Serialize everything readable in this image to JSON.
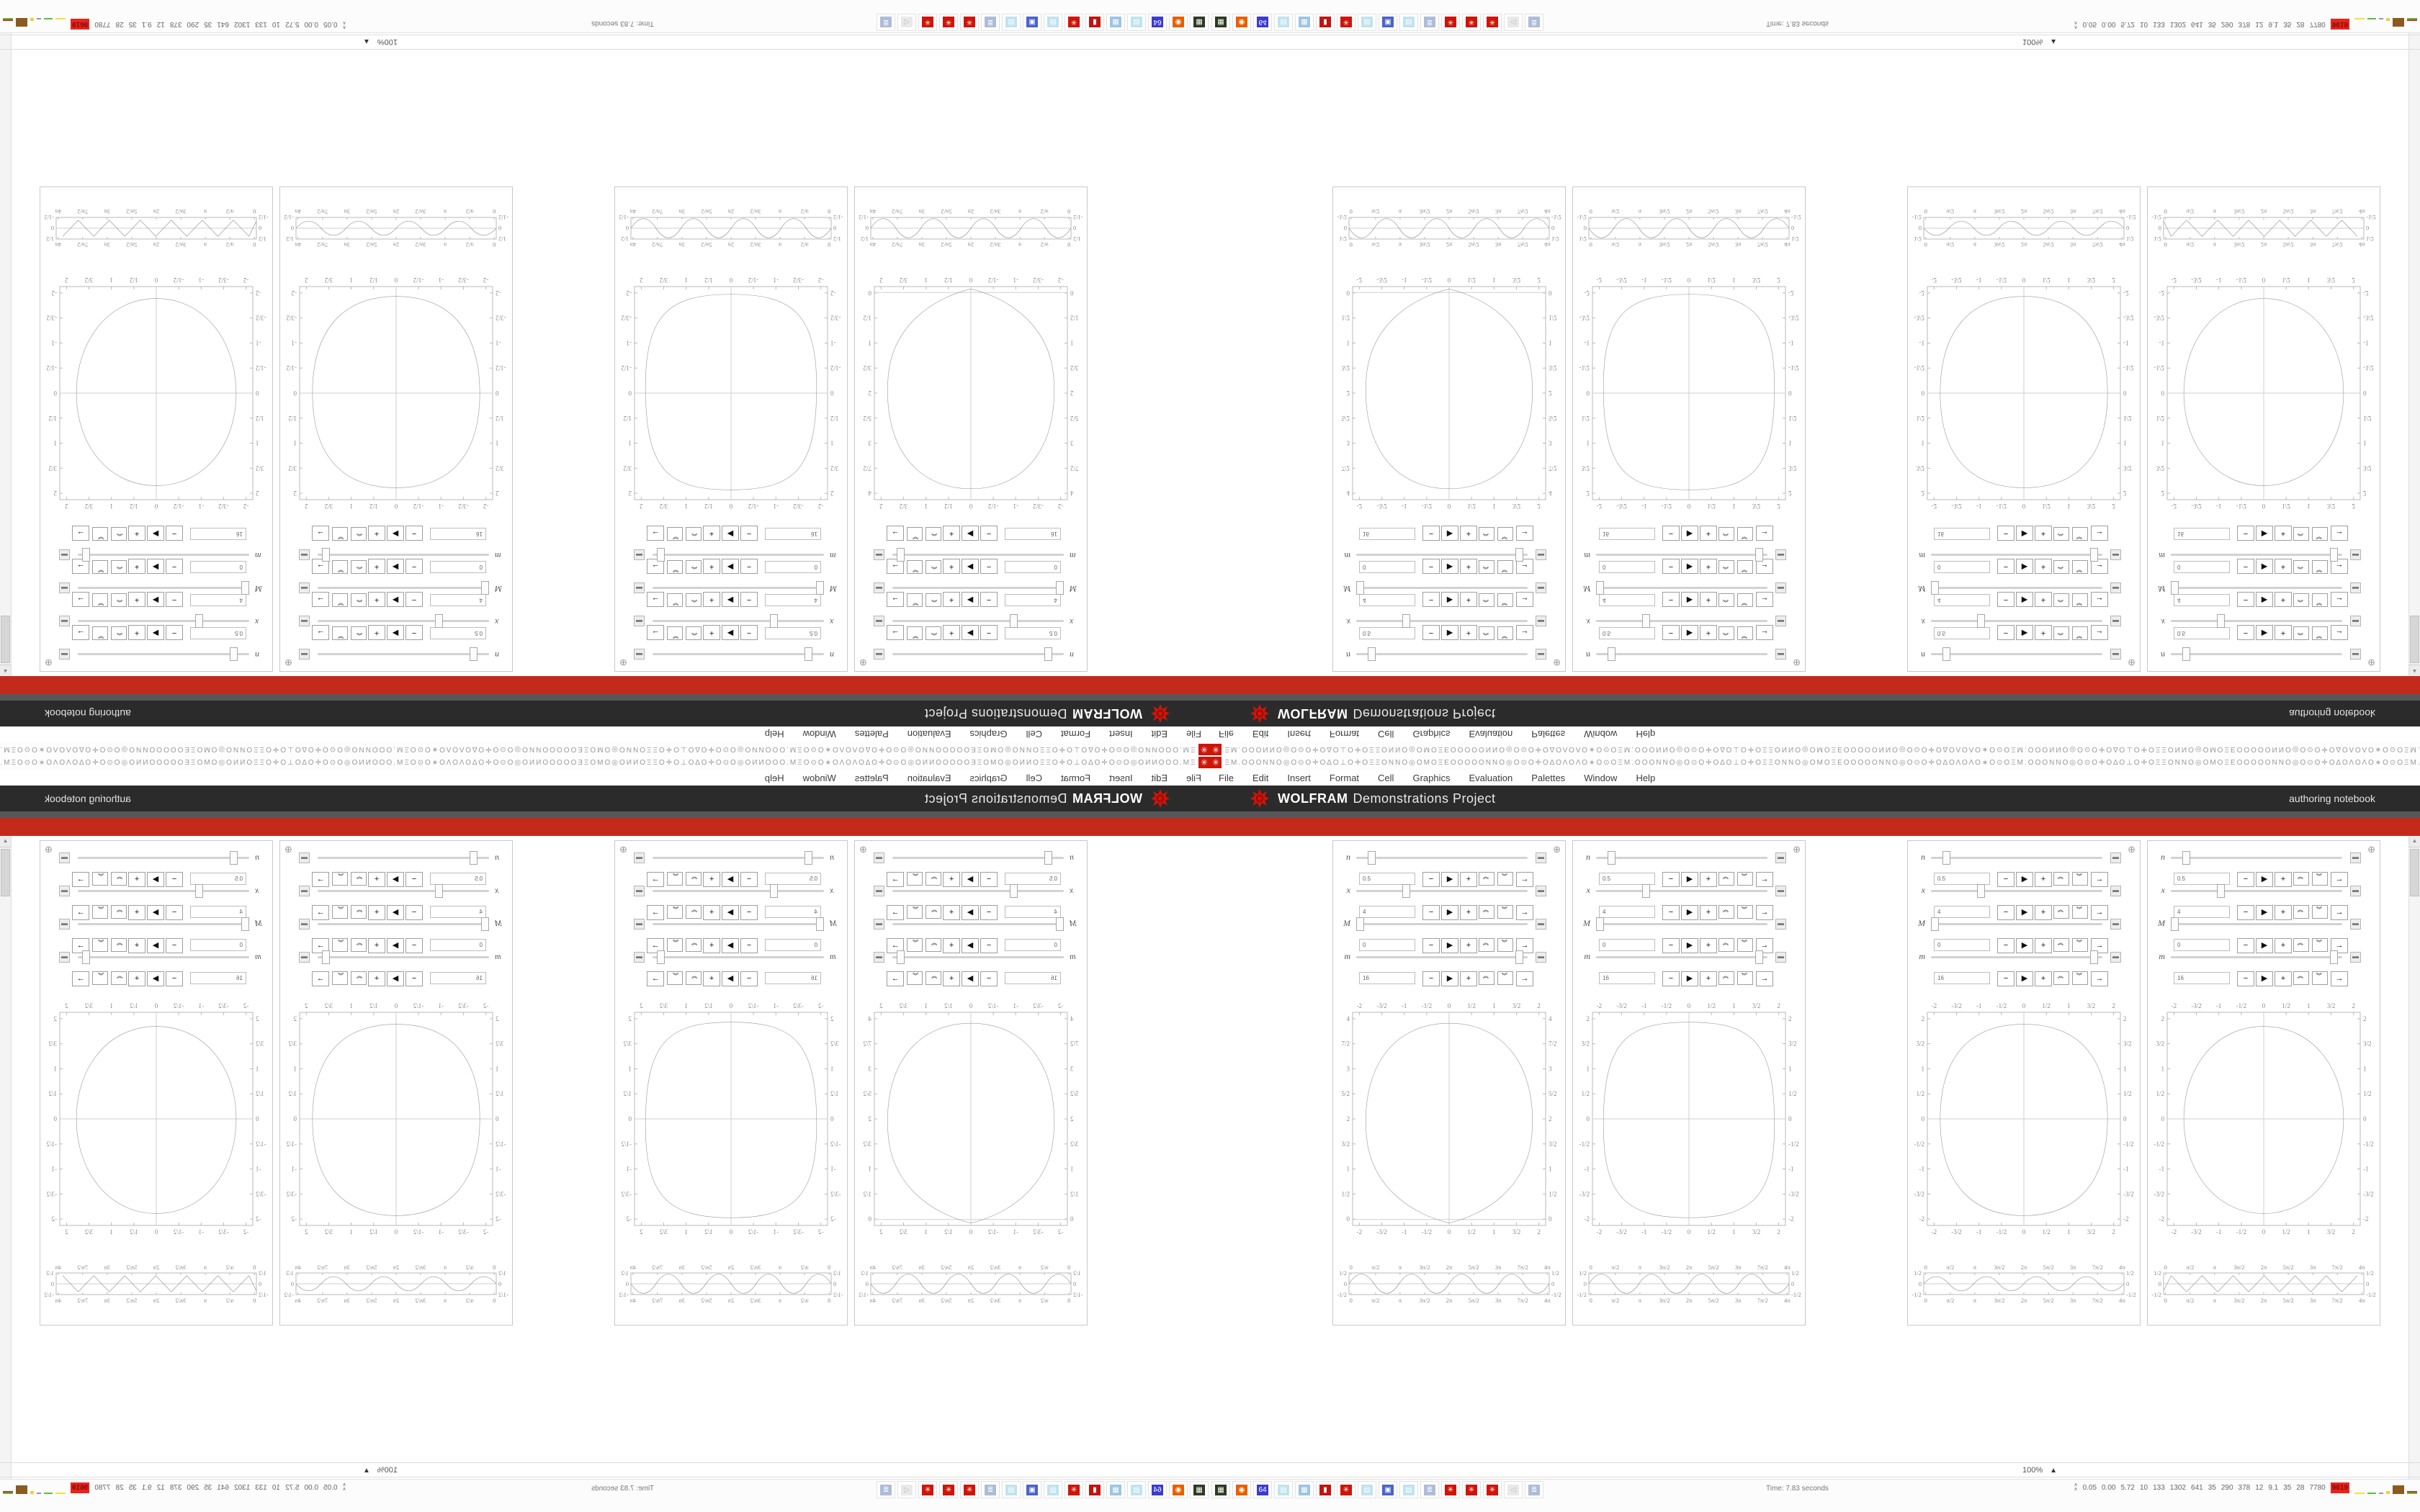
{
  "window": {
    "menus": [
      "File",
      "Edit",
      "Insert",
      "Format",
      "Cell",
      "Graphics",
      "Evaluation",
      "Palettes",
      "Window",
      "Help"
    ],
    "toolbar_glyph_pattern": "ΞΜ.ΟΟΟΝΝΟ◎Ο⊙Ο✛ΟΔΟ⊥Ο✛ΟΞΞΟΝΝΟ◎ΟΜΟΞΕΟΟΟΟΟΝΝΟ◎Ο⊙Ο✛ΟΔΟΛΟΛΟ∗Ο⊙Ο"
  },
  "banner": {
    "brand_bold": "WOLFRAM",
    "brand_light": "Demonstrations Project",
    "right_label": "authoring notebook",
    "bar_color": "#2b2b2c",
    "strip_color": "#57575a",
    "band_color": "#c42a1c",
    "spikey_color": "#cf1408"
  },
  "magnification": {
    "value": "100%",
    "arrow": "▲"
  },
  "taskbar": {
    "status_text": "Time: 7.83 seconds",
    "icons": [
      {
        "name": "archiver-icon",
        "color": "#2d3a23",
        "glyph": "▦"
      },
      {
        "name": "firefox-icon",
        "color": "#e66000",
        "glyph": "◉"
      },
      {
        "name": "floppy-64-icon",
        "color": "#3b3bd0",
        "glyph": "64"
      },
      {
        "name": "notepad-icon",
        "color": "#bfe3ee",
        "glyph": "▤"
      },
      {
        "name": "calculator-icon",
        "color": "#9cc4e4",
        "glyph": "▦"
      },
      {
        "name": "red-bag-icon",
        "color": "#c01410",
        "glyph": "▮"
      },
      {
        "name": "mathematica-icon",
        "color": "#cf1408",
        "glyph": "✳"
      },
      {
        "name": "notepad-icon",
        "color": "#bfe3ee",
        "glyph": "▤"
      },
      {
        "name": "image-viewer-icon",
        "color": "#4a62c8",
        "glyph": "▣"
      },
      {
        "name": "notepad-icon",
        "color": "#bfe3ee",
        "glyph": "▤"
      },
      {
        "name": "scroll-icon",
        "color": "#aebcd8",
        "glyph": "≣"
      },
      {
        "name": "mathematica-icon",
        "color": "#cf1408",
        "glyph": "✳"
      },
      {
        "name": "mathematica-icon",
        "color": "#cf1408",
        "glyph": "✳"
      },
      {
        "name": "mathematica-icon",
        "color": "#cf1408",
        "glyph": "✳"
      },
      {
        "name": "muted-speaker-icon",
        "color": "#e9e9e9",
        "glyph": "◁"
      },
      {
        "name": "scroll-icon",
        "color": "#aebcd8",
        "glyph": "≣"
      }
    ],
    "monitor": {
      "chevrons": "∧∧",
      "values": [
        "0.05",
        "0.00",
        "5.72",
        "10",
        "133",
        "1302",
        "641",
        "35",
        "290",
        "378",
        "12",
        "9.1",
        "35",
        "28",
        "7780"
      ],
      "badge": "9619"
    }
  },
  "chart_data": [
    {
      "type": "line",
      "title": "Manipulate panel 1",
      "controls": [
        {
          "label": "n",
          "value": "0.5",
          "slider_pos": 0.07
        },
        {
          "label": "x",
          "value": "4",
          "slider_pos": 0.28
        },
        {
          "label": "M",
          "value": "0",
          "slider_pos": 0.0
        },
        {
          "label": "m",
          "value": "16",
          "slider_pos": 0.97
        }
      ],
      "main_plot": {
        "curve": "dome",
        "xticks": [
          "-2",
          "-3/2",
          "-1",
          "-1/2",
          "0",
          "1/2",
          "1",
          "3/2",
          "2"
        ],
        "yticks": [
          "4",
          "7/2",
          "3",
          "5/2",
          "2",
          "3/2",
          "1",
          "1/2",
          "0"
        ],
        "xlim": [
          -2,
          2
        ],
        "ylim": [
          0,
          4
        ],
        "axis_x": "bottom"
      },
      "strip_plot": {
        "wave": "scallop",
        "xticks": [
          "0",
          "π/2",
          "π",
          "3π/2",
          "2π",
          "5π/2",
          "3π",
          "7π/2",
          "4π"
        ],
        "yticks": [
          "1/2",
          "0",
          "-1/2"
        ],
        "xlim_label": "0..4π",
        "ylim": [
          -0.5,
          0.5
        ]
      }
    },
    {
      "type": "line",
      "title": "Manipulate panel 2",
      "controls": [
        {
          "label": "n",
          "value": "0.5",
          "slider_pos": 0.07
        },
        {
          "label": "x",
          "value": "4",
          "slider_pos": 0.28
        },
        {
          "label": "M",
          "value": "0",
          "slider_pos": 0.0
        },
        {
          "label": "m",
          "value": "16",
          "slider_pos": 0.97
        }
      ],
      "main_plot": {
        "curve": "squircle",
        "xticks": [
          "-2",
          "-3/2",
          "-1",
          "-1/2",
          "0",
          "1/2",
          "1",
          "3/2",
          "2"
        ],
        "yticks": [
          "2",
          "3/2",
          "1",
          "1/2",
          "0",
          "-1/2",
          "-1",
          "-3/2",
          "-2"
        ],
        "xlim": [
          -2,
          2
        ],
        "ylim": [
          -2,
          2
        ],
        "axis_x": "center"
      },
      "strip_plot": {
        "wave": "scallop",
        "xticks": [
          "0",
          "π/2",
          "π",
          "3π/2",
          "2π",
          "5π/2",
          "3π",
          "7π/2",
          "4π"
        ],
        "yticks": [
          "1/2",
          "0",
          "-1/2"
        ],
        "xlim_label": "0..4π",
        "ylim": [
          -0.5,
          0.5
        ]
      }
    },
    {
      "type": "line",
      "title": "Manipulate panel 3",
      "controls": [
        {
          "label": "n",
          "value": "0.5",
          "slider_pos": 0.07
        },
        {
          "label": "x",
          "value": "4",
          "slider_pos": 0.28
        },
        {
          "label": "M",
          "value": "0",
          "slider_pos": 0.0
        },
        {
          "label": "m",
          "value": "16",
          "slider_pos": 0.97
        }
      ],
      "main_plot": {
        "curve": "blob",
        "xticks": [
          "-2",
          "-3/2",
          "-1",
          "-1/2",
          "0",
          "1/2",
          "1",
          "3/2",
          "2"
        ],
        "yticks": [
          "2",
          "3/2",
          "1",
          "1/2",
          "0",
          "-1/2",
          "-1",
          "-3/2",
          "-2"
        ],
        "xlim": [
          -2,
          2
        ],
        "ylim": [
          -2,
          2
        ],
        "axis_x": "center"
      },
      "strip_plot": {
        "wave": "sine",
        "xticks": [
          "0",
          "π/2",
          "π",
          "3π/2",
          "2π",
          "5π/2",
          "3π",
          "7π/2",
          "4π"
        ],
        "yticks": [
          "1/2",
          "0",
          "-1/2"
        ],
        "xlim_label": "0..4π",
        "ylim": [
          -0.5,
          0.5
        ]
      }
    },
    {
      "type": "line",
      "title": "Manipulate panel 4",
      "controls": [
        {
          "label": "n",
          "value": "0.5",
          "slider_pos": 0.07
        },
        {
          "label": "x",
          "value": "4",
          "slider_pos": 0.28
        },
        {
          "label": "M",
          "value": "0",
          "slider_pos": 0.0
        },
        {
          "label": "m",
          "value": "16",
          "slider_pos": 0.97
        }
      ],
      "main_plot": {
        "curve": "circle",
        "xticks": [
          "-2",
          "-3/2",
          "-1",
          "-1/2",
          "0",
          "1/2",
          "1",
          "3/2",
          "2"
        ],
        "yticks": [
          "2",
          "3/2",
          "1",
          "1/2",
          "0",
          "-1/2",
          "-1",
          "-3/2",
          "-2"
        ],
        "xlim": [
          -2,
          2
        ],
        "ylim": [
          -2,
          2
        ],
        "axis_x": "center"
      },
      "strip_plot": {
        "wave": "zigzag",
        "xticks": [
          "0",
          "π/2",
          "π",
          "3π/2",
          "2π",
          "5π/2",
          "3π",
          "7π/2",
          "4π"
        ],
        "yticks": [
          "1/2",
          "0",
          "-1/2"
        ],
        "xlim_label": "0..4π",
        "ylim": [
          -0.5,
          0.5
        ]
      }
    }
  ]
}
